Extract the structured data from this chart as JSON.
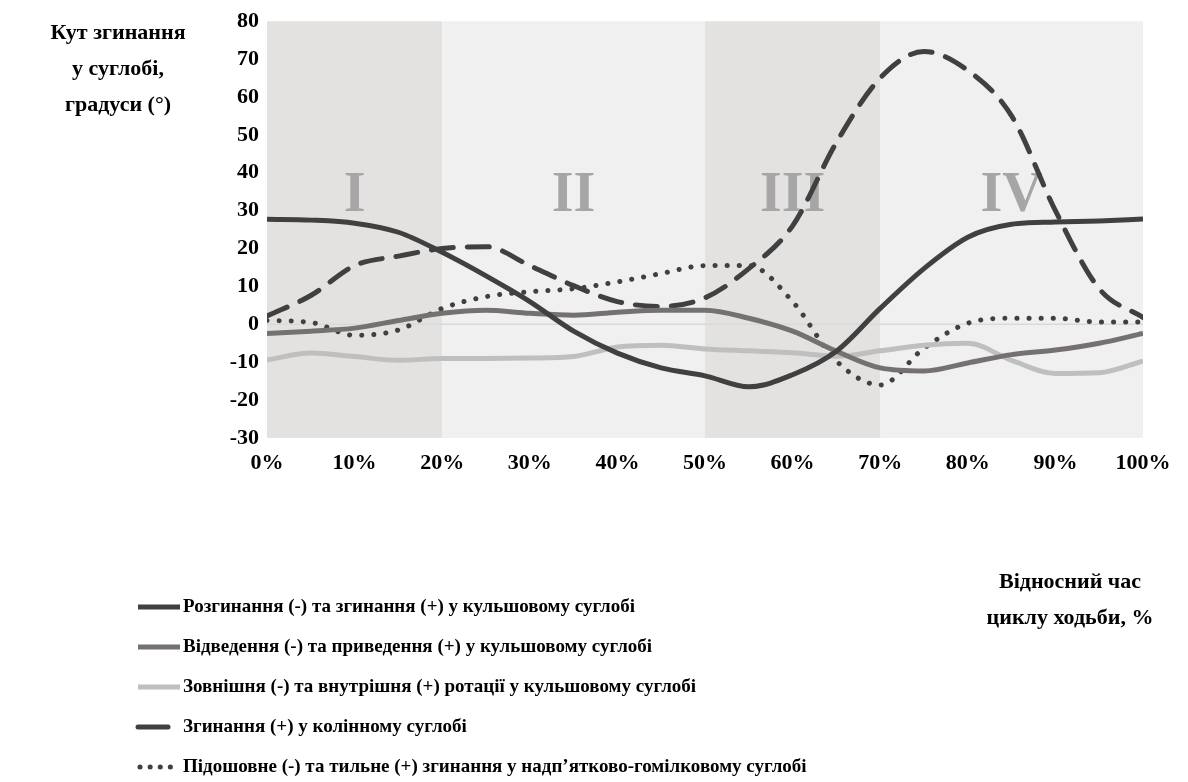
{
  "chart_data": {
    "type": "line",
    "ylabel": "Кут згинання\nу суглобі,\nградуси (°)",
    "xlabel": "Відносний час\nциклу ходьби, %",
    "x": [
      0,
      5,
      10,
      15,
      20,
      25,
      30,
      35,
      40,
      45,
      50,
      55,
      60,
      65,
      70,
      75,
      80,
      85,
      90,
      95,
      100
    ],
    "xlim": [
      0,
      100
    ],
    "xticks": [
      {
        "value": 0,
        "label": "0%"
      },
      {
        "value": 10,
        "label": "10%"
      },
      {
        "value": 20,
        "label": "20%"
      },
      {
        "value": 30,
        "label": "30%"
      },
      {
        "value": 40,
        "label": "40%"
      },
      {
        "value": 50,
        "label": "50%"
      },
      {
        "value": 60,
        "label": "60%"
      },
      {
        "value": 70,
        "label": "70%"
      },
      {
        "value": 80,
        "label": "80%"
      },
      {
        "value": 90,
        "label": "90%"
      },
      {
        "value": 100,
        "label": "100%"
      }
    ],
    "ylim": [
      -30,
      80
    ],
    "yticks": [
      -30,
      -20,
      -10,
      0,
      10,
      20,
      30,
      40,
      50,
      60,
      70,
      80
    ],
    "grid": false,
    "legend": "bottom",
    "marker": "none",
    "bands": [
      {
        "axis": "x",
        "from": 0,
        "to": 20,
        "label": "I",
        "color": "#e4e2e1"
      },
      {
        "axis": "x",
        "from": 20,
        "to": 50,
        "label": "II",
        "color": "#f0f0f0"
      },
      {
        "axis": "x",
        "from": 50,
        "to": 70,
        "label": "III",
        "color": "#e4e2e1"
      },
      {
        "axis": "x",
        "from": 70,
        "to": 100,
        "label": "IV",
        "color": "#f0f0f0"
      }
    ],
    "ref_lines": [
      {
        "axis": "y",
        "value": 0,
        "color": "#d9d9d9"
      }
    ],
    "series": [
      {
        "name": "Розгинання (-) та згинання (+) у кульшовому суглобі",
        "color": "#404040",
        "line_style": "solid",
        "values": [
          27.7,
          27.5,
          26.7,
          24.3,
          19,
          12.8,
          6,
          -1.8,
          -7.6,
          -11.5,
          -13.6,
          -16.5,
          -13.3,
          -7.1,
          4.2,
          14.7,
          23,
          26.4,
          27,
          27.3,
          27.8
        ]
      },
      {
        "name": "Відведення (-) та приведення (+) у кульшовому суглобі",
        "color": "#767171",
        "line_style": "solid",
        "values": [
          -2.4,
          -1.8,
          -1,
          1,
          2.9,
          3.7,
          2.9,
          2.4,
          3.2,
          3.7,
          3.7,
          1.6,
          -1.8,
          -7.1,
          -11.5,
          -12.3,
          -10.2,
          -8,
          -6.8,
          -5,
          -2.4
        ]
      },
      {
        "name": "Зовнішня (-) та внутрішня (+) ротації у кульшовому суглобі",
        "color": "#bfbfbf",
        "line_style": "solid",
        "values": [
          -9.4,
          -7.6,
          -8.5,
          -9.5,
          -9,
          -9,
          -8.9,
          -8.5,
          -6,
          -5.5,
          -6.5,
          -7,
          -7.5,
          -8.4,
          -7,
          -5.5,
          -5,
          -9.5,
          -13,
          -12.8,
          -9.7
        ]
      },
      {
        "name": "Згинання (+) у колінному суглобі",
        "color": "#404040",
        "line_style": "dashed",
        "values": [
          2.2,
          7.6,
          15.5,
          18,
          20,
          20.5,
          15.5,
          10.2,
          6,
          4.7,
          7,
          14.7,
          26,
          48,
          65,
          72,
          67,
          55,
          30,
          9.4,
          1.8
        ]
      },
      {
        "name": "Підошовне (-) та тильне (+) згинання у надп’ятково-гомілковому суглобі",
        "color": "#404040",
        "line_style": "dotted",
        "values": [
          1,
          0.5,
          -2.9,
          -1.5,
          4.2,
          7.3,
          8.6,
          9.4,
          11.2,
          13.4,
          15.5,
          15.5,
          6,
          -9.7,
          -16,
          -6.3,
          0.3,
          1.6,
          1.6,
          0.6,
          0.6
        ]
      }
    ]
  }
}
